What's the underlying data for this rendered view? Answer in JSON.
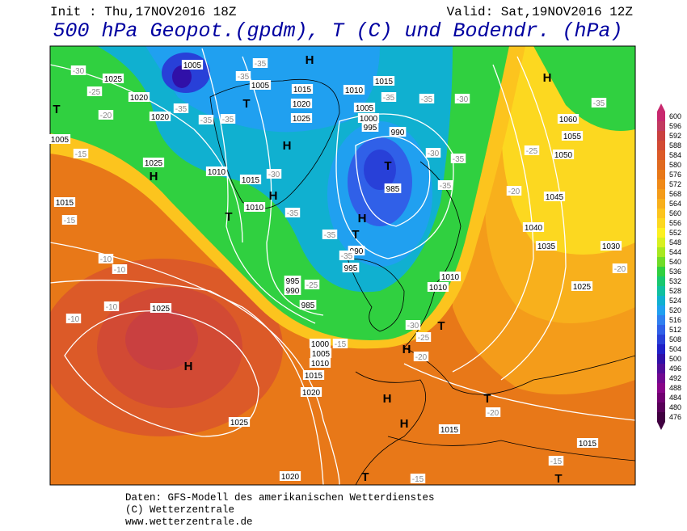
{
  "header": {
    "init": "Init : Thu,17NOV2016 18Z",
    "valid": "Valid: Sat,19NOV2016 12Z",
    "title": "500 hPa Geopot.(gpdm), T (C) und Bodendr. (hPa)"
  },
  "footer": {
    "line1": "Daten: GFS-Modell des amerikanischen Wetterdienstes",
    "line2": "(C) Wetterzentrale",
    "line3": "www.wetterzentrale.de"
  },
  "map": {
    "highs_lows": [
      "H",
      "H",
      "H",
      "H",
      "H",
      "H",
      "H",
      "H",
      "H",
      "H",
      "T",
      "T",
      "T",
      "T",
      "T",
      "T",
      "T",
      "T",
      "T"
    ],
    "isobar_labels": [
      "1005",
      "1005",
      "1015",
      "1020",
      "1025",
      "1010",
      "1015",
      "1005",
      "1000",
      "995",
      "990",
      "1025",
      "1020",
      "1020",
      "1005",
      "1025",
      "1015",
      "1010",
      "1015",
      "1010",
      "1060",
      "1055",
      "1050",
      "1045",
      "1040",
      "1035",
      "1030",
      "1025",
      "1010",
      "1010",
      "995",
      "995",
      "990",
      "985",
      "990",
      "985",
      "1025",
      "1000",
      "1005",
      "1010",
      "1015",
      "1020",
      "1025",
      "1015",
      "1015",
      "1020"
    ],
    "temperature_labels": [
      "-30",
      "-25",
      "-20",
      "-15",
      "-15",
      "-10",
      "-10",
      "-10",
      "-10",
      "-35",
      "-35",
      "-35",
      "-35",
      "-35",
      "-30",
      "-35",
      "-35",
      "-35",
      "-25",
      "-30",
      "-35",
      "-35",
      "-35",
      "-30",
      "-25",
      "-20",
      "-20",
      "-35",
      "-30",
      "-25",
      "-20",
      "-15",
      "-20",
      "-15",
      "-15",
      "-35"
    ]
  },
  "colorbar": {
    "ticks": [
      476,
      480,
      484,
      488,
      492,
      496,
      500,
      504,
      508,
      512,
      516,
      520,
      524,
      528,
      532,
      536,
      540,
      544,
      548,
      552,
      556,
      560,
      564,
      568,
      572,
      576,
      580,
      584,
      588,
      592,
      596,
      600
    ],
    "colors": [
      "#400040",
      "#580058",
      "#700070",
      "#880488",
      "#700890",
      "#500c98",
      "#3010a8",
      "#2020c8",
      "#2840d8",
      "#3060e8",
      "#3080f0",
      "#20a0f0",
      "#10b0d0",
      "#10c0a0",
      "#18c870",
      "#30d040",
      "#70dc28",
      "#a8e820",
      "#d8f020",
      "#fcf020",
      "#fcd820",
      "#fcc41e",
      "#f8b01c",
      "#f49c1a",
      "#f08a18",
      "#e87818",
      "#e06a20",
      "#dc5a28",
      "#d24a34",
      "#c94040",
      "#c23a60",
      "#c8286e"
    ]
  }
}
